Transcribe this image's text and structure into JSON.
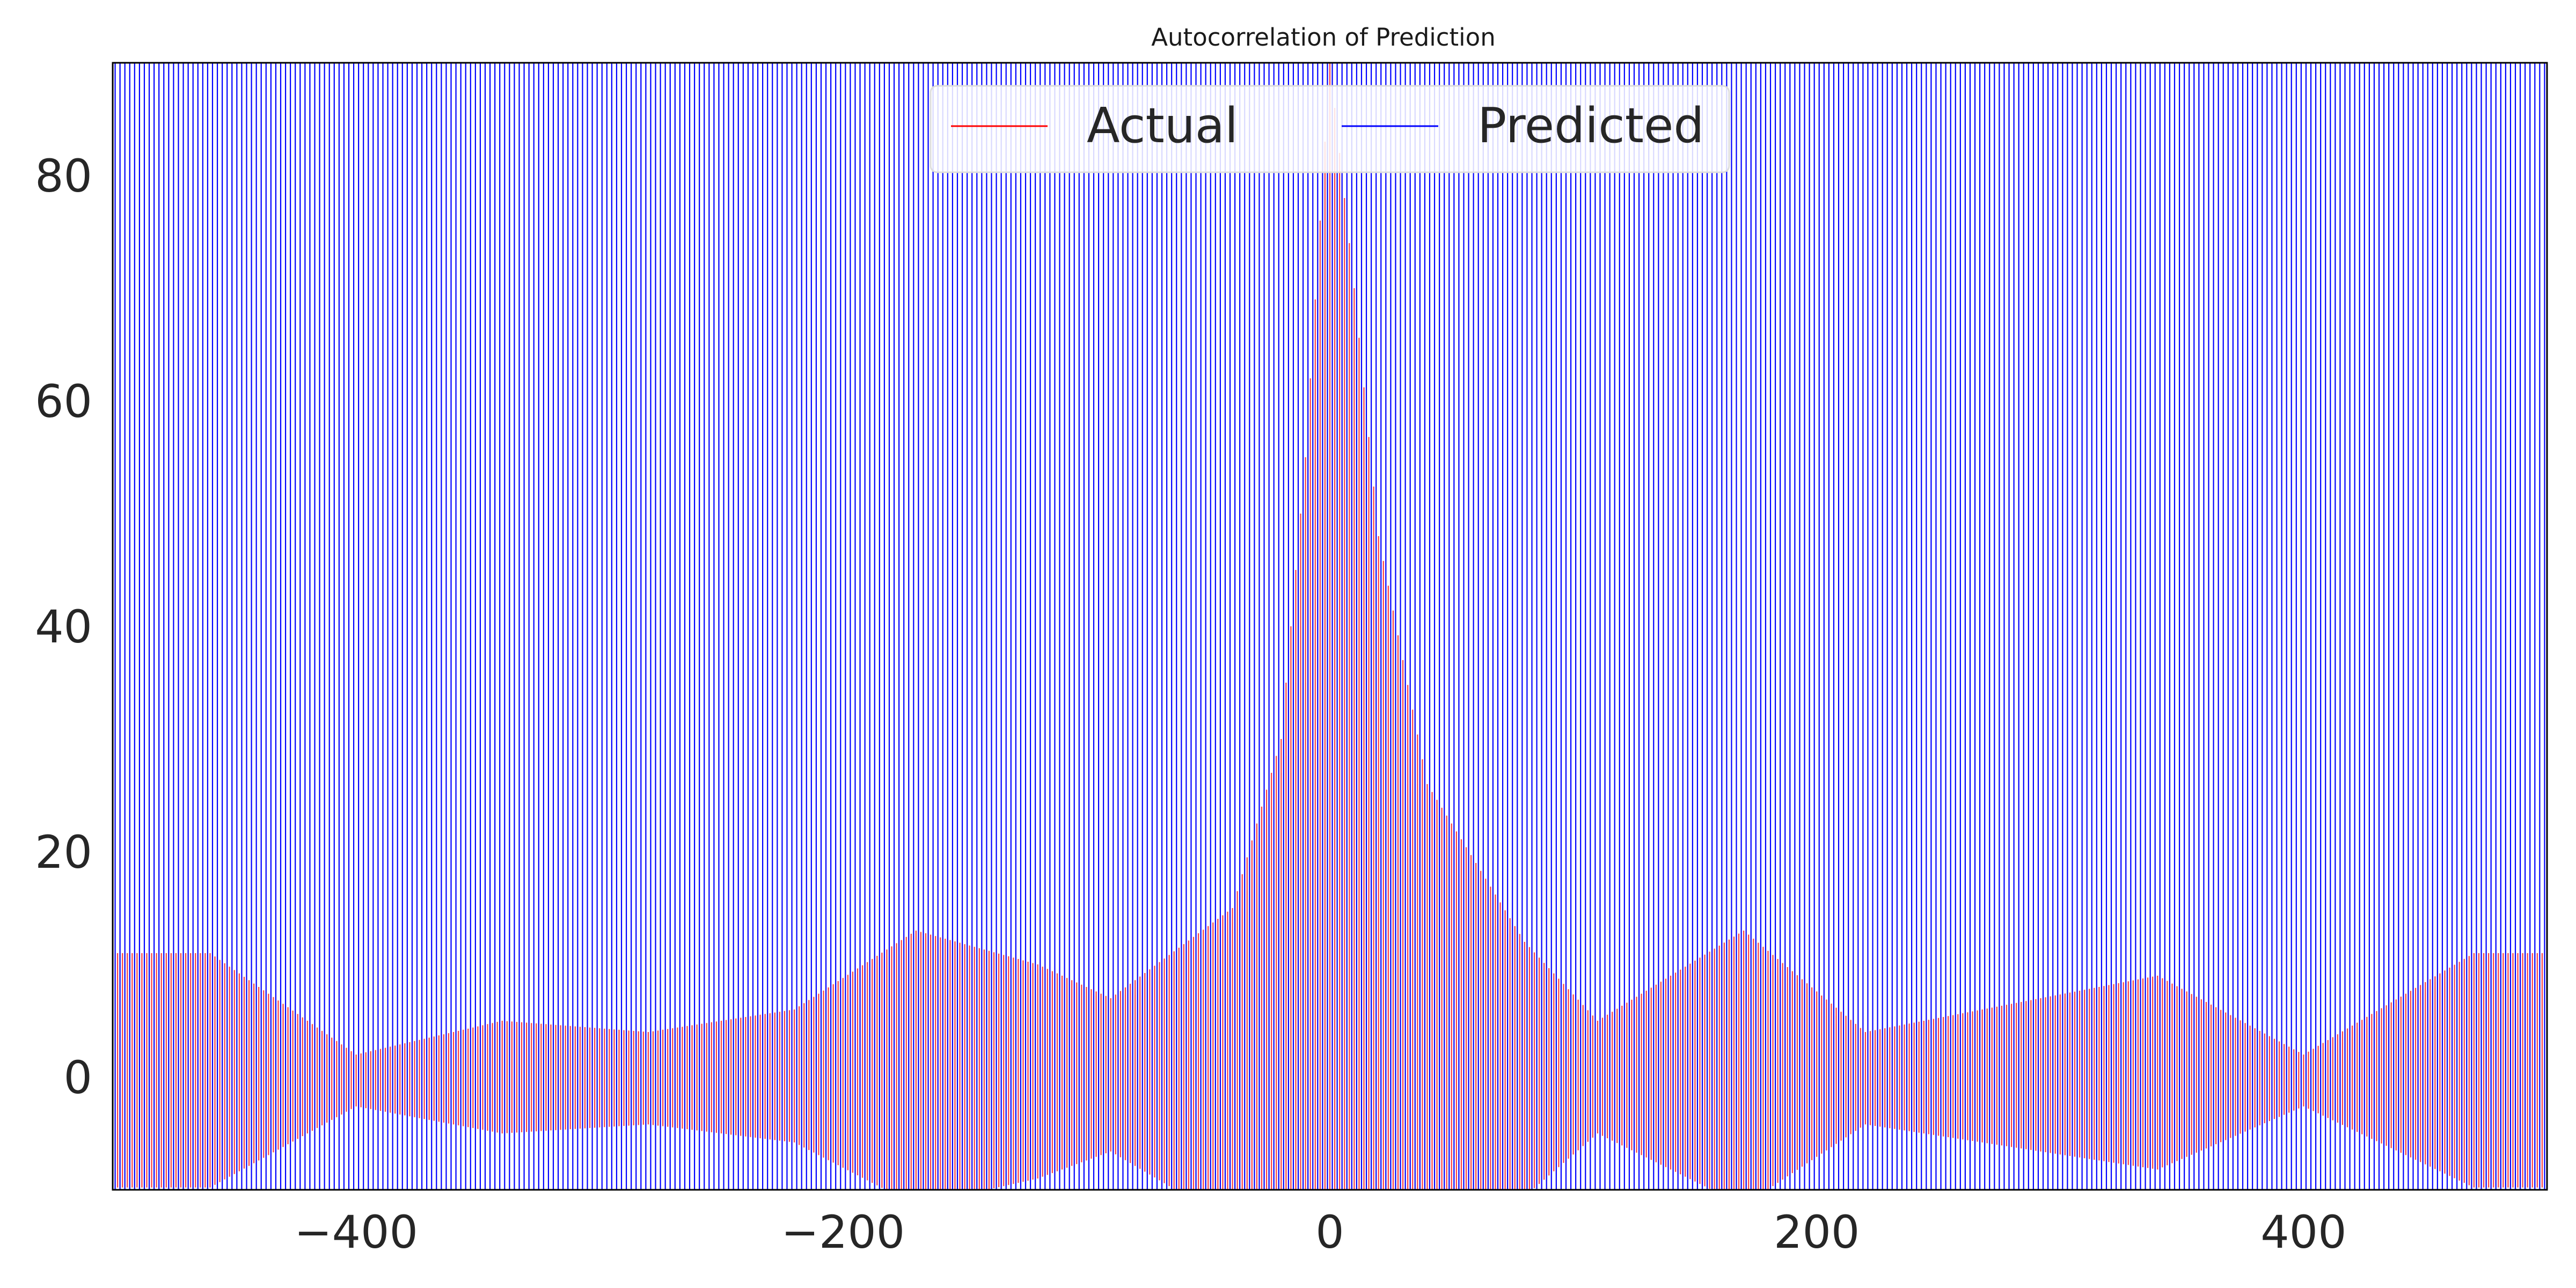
{
  "chart_data": {
    "type": "bar",
    "title": "Autocorrelation of Prediction",
    "xlabel": "",
    "ylabel": "",
    "xlim": [
      -500,
      500
    ],
    "ylim": [
      -10,
      90
    ],
    "xticks": [
      -400,
      -200,
      0,
      200,
      400
    ],
    "xtick_labels": [
      "−400",
      "−200",
      "0",
      "200",
      "400"
    ],
    "yticks": [
      0,
      20,
      40,
      60,
      80
    ],
    "ytick_labels": [
      "0",
      "20",
      "40",
      "60",
      "80"
    ],
    "grid": false,
    "legend": {
      "placement": "upper center",
      "columns": 2
    },
    "series": [
      {
        "name": "Actual",
        "color": "#ff0000",
        "style": "vlines",
        "lag_range": [
          -499,
          499
        ],
        "approx_envelope": [
          {
            "lag": -460,
            "value": 11
          },
          {
            "lag": -400,
            "value": 2
          },
          {
            "lag": -340,
            "value": 5
          },
          {
            "lag": -280,
            "value": 4
          },
          {
            "lag": -220,
            "value": 6
          },
          {
            "lag": -170,
            "value": 13
          },
          {
            "lag": -120,
            "value": 10
          },
          {
            "lag": -90,
            "value": 7
          },
          {
            "lag": -40,
            "value": 15
          },
          {
            "lag": -20,
            "value": 30
          },
          {
            "lag": -10,
            "value": 55
          },
          {
            "lag": 0,
            "value": 90
          },
          {
            "lag": 10,
            "value": 70
          },
          {
            "lag": 20,
            "value": 48
          },
          {
            "lag": 40,
            "value": 26
          },
          {
            "lag": 80,
            "value": 12
          },
          {
            "lag": 110,
            "value": 5
          },
          {
            "lag": 170,
            "value": 13
          },
          {
            "lag": 220,
            "value": 4
          },
          {
            "lag": 340,
            "value": 9
          },
          {
            "lag": 400,
            "value": 2
          },
          {
            "lag": 470,
            "value": 11
          }
        ]
      },
      {
        "name": "Predicted",
        "color": "#0000ff",
        "style": "vlines",
        "lag_range": [
          -499,
          499
        ],
        "approx_range": [
          -10,
          90
        ]
      }
    ]
  },
  "colors": {
    "actual": "#ff0000",
    "predicted": "#0000ff",
    "axis": "#000000",
    "text": "#262626"
  }
}
